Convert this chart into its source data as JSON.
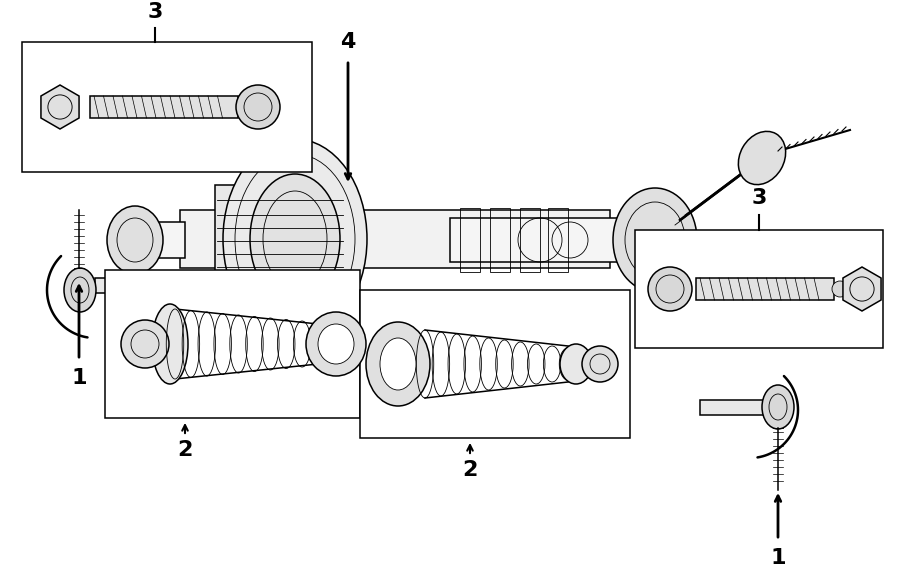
{
  "background_color": "#ffffff",
  "line_color": "#000000",
  "figsize": [
    9.0,
    5.68
  ],
  "dpi": 100,
  "label_fontsize": 16,
  "label_fontweight": "bold"
}
